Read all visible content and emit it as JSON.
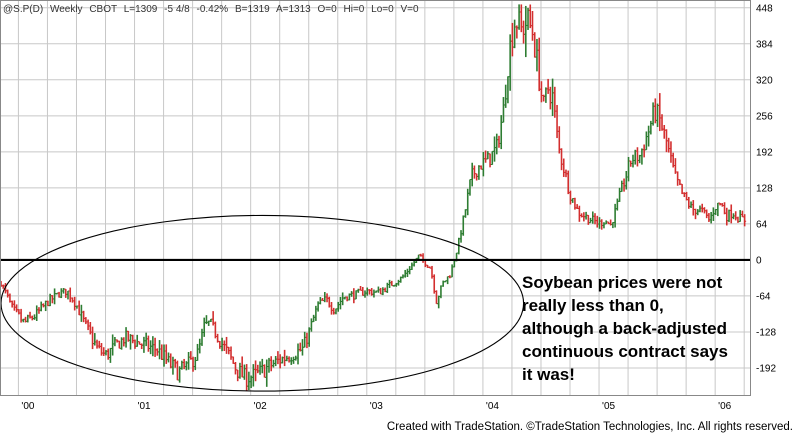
{
  "header": {
    "symbol": "@S.P(D)",
    "interval": "Weekly",
    "exchange": "CBOT",
    "last": "L=1309",
    "change": "-5 4/8",
    "pct_change": "-0.42%",
    "bid": "B=1319",
    "ask": "A=1313",
    "open": "O=0",
    "high": "Hi=0",
    "low": "Lo=0",
    "volume": "V=0"
  },
  "annotation": {
    "lines": [
      "Soybean prices were not",
      "really less than 0,",
      "although a back-adjusted",
      "continuous contract says",
      "it was!"
    ]
  },
  "footer": {
    "text": "Created with TradeStation. ©TradeStation Technologies, Inc. All rights reserved."
  },
  "colors": {
    "up_bar": "#2e7d32",
    "down_bar": "#d32f2f",
    "grid": "#c8c8c8",
    "zero_line": "#000000",
    "ellipse": "#000000"
  },
  "chart_data": {
    "type": "line",
    "style": "OHLC bar chart (weekly), drawn as vertical price bars colored green (up) / red (down)",
    "y_axis_side": "right",
    "ylim": [
      -240,
      460
    ],
    "y_ticks": [
      448,
      384,
      320,
      256,
      192,
      128,
      64,
      0,
      -64,
      -128,
      -192
    ],
    "y_tick_labels": [
      "448",
      "384",
      "320",
      "256",
      "192",
      "128",
      "64",
      "0",
      "-64",
      "-128",
      "-192"
    ],
    "x_tick_labels": [
      "'00",
      "'01",
      "'02",
      "'03",
      "'04",
      "'05",
      "'06"
    ],
    "x_tick_years": [
      2000,
      2001,
      2002,
      2003,
      2004,
      2005,
      2006
    ],
    "xlim": [
      1999.85,
      2006.3
    ],
    "grid": true,
    "reference_line": 0,
    "ellipse_center": [
      2002.1,
      -77
    ],
    "ellipse_radii": [
      2.25,
      156
    ],
    "series": [
      {
        "points": [
          [
            1999.85,
            -40
          ],
          [
            1999.95,
            -88
          ],
          [
            2000.05,
            -112
          ],
          [
            2000.15,
            -98
          ],
          [
            2000.25,
            -75
          ],
          [
            2000.35,
            -60
          ],
          [
            2000.42,
            -55
          ],
          [
            2000.5,
            -80
          ],
          [
            2000.58,
            -118
          ],
          [
            2000.68,
            -158
          ],
          [
            2000.75,
            -170
          ],
          [
            2000.85,
            -150
          ],
          [
            2000.92,
            -138
          ],
          [
            2001.0,
            -145
          ],
          [
            2001.1,
            -152
          ],
          [
            2001.2,
            -160
          ],
          [
            2001.3,
            -185
          ],
          [
            2001.38,
            -200
          ],
          [
            2001.45,
            -190
          ],
          [
            2001.55,
            -165
          ],
          [
            2001.6,
            -118
          ],
          [
            2001.65,
            -112
          ],
          [
            2001.72,
            -138
          ],
          [
            2001.8,
            -165
          ],
          [
            2001.88,
            -195
          ],
          [
            2001.95,
            -210
          ],
          [
            2002.05,
            -205
          ],
          [
            2002.15,
            -190
          ],
          [
            2002.25,
            -178
          ],
          [
            2002.35,
            -168
          ],
          [
            2002.45,
            -158
          ],
          [
            2002.5,
            -130
          ],
          [
            2002.58,
            -80
          ],
          [
            2002.65,
            -70
          ],
          [
            2002.72,
            -88
          ],
          [
            2002.8,
            -65
          ],
          [
            2002.9,
            -62
          ],
          [
            2003.0,
            -55
          ],
          [
            2003.1,
            -58
          ],
          [
            2003.2,
            -45
          ],
          [
            2003.3,
            -32
          ],
          [
            2003.38,
            -12
          ],
          [
            2003.45,
            8
          ],
          [
            2003.5,
            -5
          ],
          [
            2003.55,
            -15
          ],
          [
            2003.6,
            -72
          ],
          [
            2003.66,
            -40
          ],
          [
            2003.72,
            -25
          ],
          [
            2003.78,
            20
          ],
          [
            2003.85,
            90
          ],
          [
            2003.9,
            148
          ],
          [
            2003.97,
            168
          ],
          [
            2004.05,
            178
          ],
          [
            2004.12,
            200
          ],
          [
            2004.18,
            270
          ],
          [
            2004.22,
            360
          ],
          [
            2004.25,
            400
          ],
          [
            2004.28,
            430
          ],
          [
            2004.33,
            408
          ],
          [
            2004.38,
            425
          ],
          [
            2004.43,
            405
          ],
          [
            2004.48,
            330
          ],
          [
            2004.52,
            270
          ],
          [
            2004.56,
            305
          ],
          [
            2004.6,
            290
          ],
          [
            2004.65,
            200
          ],
          [
            2004.7,
            160
          ],
          [
            2004.75,
            118
          ],
          [
            2004.82,
            85
          ],
          [
            2004.9,
            75
          ],
          [
            2005.0,
            65
          ],
          [
            2005.05,
            70
          ],
          [
            2005.1,
            62
          ],
          [
            2005.15,
            92
          ],
          [
            2005.2,
            128
          ],
          [
            2005.28,
            180
          ],
          [
            2005.35,
            185
          ],
          [
            2005.42,
            225
          ],
          [
            2005.48,
            265
          ],
          [
            2005.52,
            250
          ],
          [
            2005.58,
            210
          ],
          [
            2005.65,
            150
          ],
          [
            2005.72,
            115
          ],
          [
            2005.8,
            90
          ],
          [
            2005.88,
            88
          ],
          [
            2005.95,
            70
          ],
          [
            2006.0,
            95
          ],
          [
            2006.05,
            100
          ],
          [
            2006.1,
            78
          ],
          [
            2006.15,
            85
          ],
          [
            2006.2,
            75
          ],
          [
            2006.27,
            70
          ]
        ]
      }
    ]
  }
}
